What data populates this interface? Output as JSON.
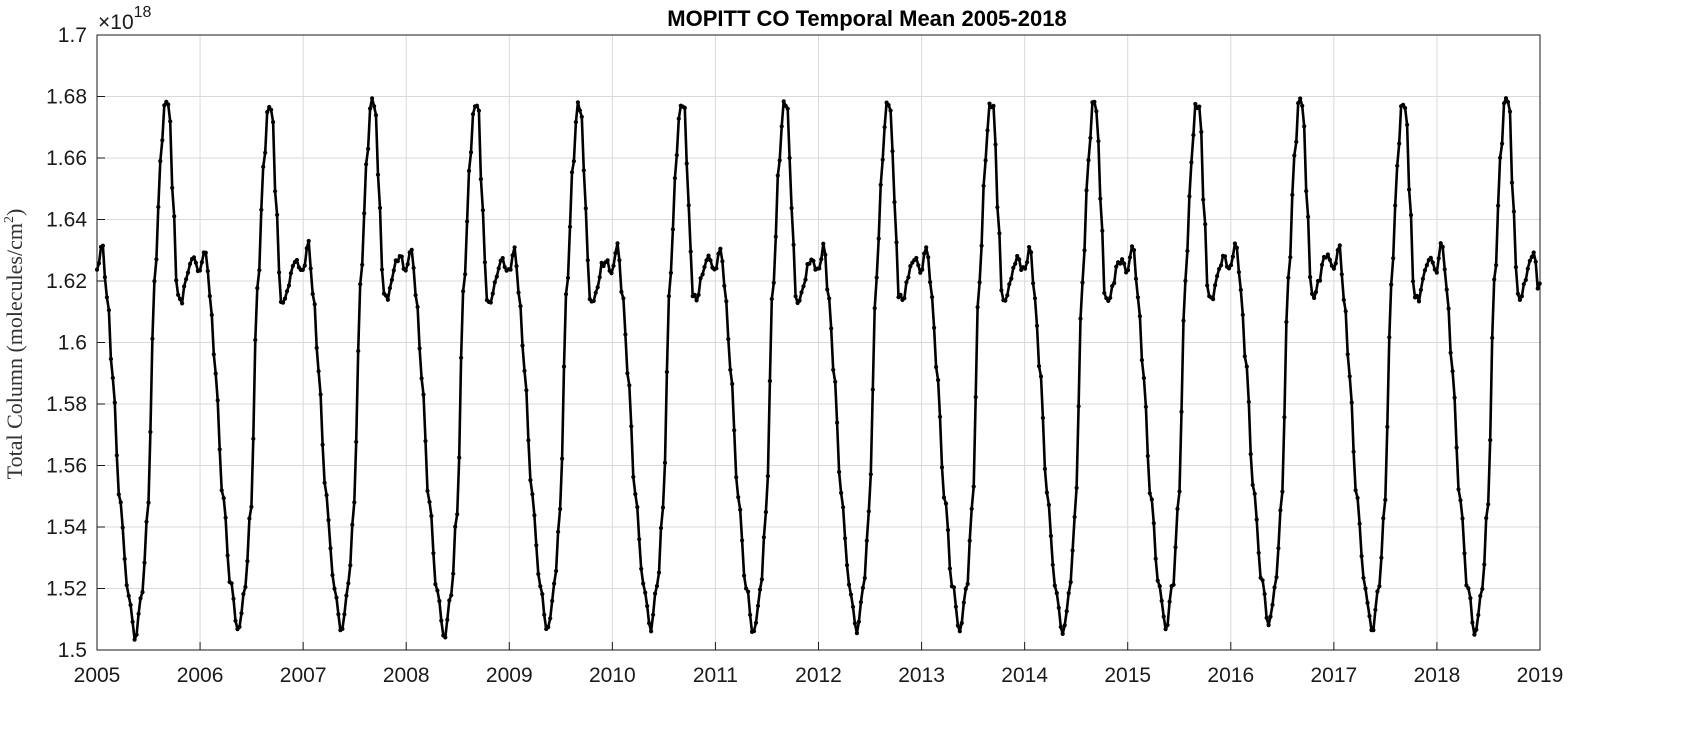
{
  "chart_data": {
    "type": "line",
    "title": "MOPITT CO Temporal Mean 2005-2018",
    "xlabel": "",
    "ylabel": "Total Column (molecules/cm²)",
    "ylabel_main": "Total Column (molecules/cm",
    "ylabel_sup": "2",
    "ylabel_close": ")",
    "y_multiplier_base": "×10",
    "y_multiplier_exp": "18",
    "xlim": [
      2005,
      2019
    ],
    "ylim": [
      1.5,
      1.7
    ],
    "grid": true,
    "x_ticks": [
      "2005",
      "2006",
      "2007",
      "2008",
      "2009",
      "2010",
      "2011",
      "2012",
      "2013",
      "2014",
      "2015",
      "2016",
      "2017",
      "2018",
      "2019"
    ],
    "y_ticks": [
      "1.5",
      "1.52",
      "1.54",
      "1.56",
      "1.58",
      "1.6",
      "1.62",
      "1.64",
      "1.66",
      "1.68",
      "1.7"
    ],
    "marker": "dot",
    "line_color": "#000000",
    "series": [
      {
        "x_start": 2005.0,
        "x_step": 0.0192,
        "annual_cycle": {
          "x_offsets": [
            0.0,
            0.05,
            0.1,
            0.15,
            0.22,
            0.3,
            0.37,
            0.44,
            0.49,
            0.56,
            0.62,
            0.66,
            0.7,
            0.74,
            0.78,
            0.82,
            0.86,
            0.9,
            0.94,
            0.98,
            1.0
          ],
          "y_values": [
            1.624,
            1.632,
            1.615,
            1.59,
            1.55,
            1.52,
            1.505,
            1.52,
            1.545,
            1.62,
            1.66,
            1.679,
            1.677,
            1.645,
            1.615,
            1.614,
            1.62,
            1.626,
            1.628,
            1.624,
            1.624
          ]
        },
        "annual_extrema": [
          {
            "year": 2005,
            "min": 1.504,
            "max": 1.679
          },
          {
            "year": 2006,
            "min": 1.506,
            "max": 1.677
          },
          {
            "year": 2007,
            "min": 1.506,
            "max": 1.679
          },
          {
            "year": 2008,
            "min": 1.504,
            "max": 1.678
          },
          {
            "year": 2009,
            "min": 1.506,
            "max": 1.677
          },
          {
            "year": 2010,
            "min": 1.507,
            "max": 1.678
          },
          {
            "year": 2011,
            "min": 1.505,
            "max": 1.678
          },
          {
            "year": 2012,
            "min": 1.506,
            "max": 1.678
          },
          {
            "year": 2013,
            "min": 1.506,
            "max": 1.678
          },
          {
            "year": 2014,
            "min": 1.505,
            "max": 1.678
          },
          {
            "year": 2015,
            "min": 1.507,
            "max": 1.678
          },
          {
            "year": 2016,
            "min": 1.508,
            "max": 1.679
          },
          {
            "year": 2017,
            "min": 1.506,
            "max": 1.678
          },
          {
            "year": 2018,
            "min": 1.505,
            "max": 1.68
          }
        ],
        "end_value": 1.618
      }
    ]
  }
}
